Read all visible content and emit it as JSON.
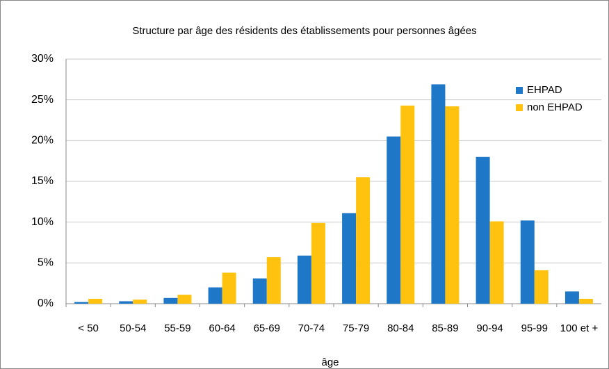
{
  "chart_data": {
    "type": "bar",
    "title": "Structure par âge des résidents des établissements pour personnes âgées",
    "xlabel": "âge",
    "categories": [
      "< 50",
      "50-54",
      "55-59",
      "60-64",
      "65-69",
      "70-74",
      "75-79",
      "80-84",
      "85-89",
      "90-94",
      "95-99",
      "100 et +"
    ],
    "series": [
      {
        "name": "EHPAD",
        "color": "#1f77c8",
        "values": [
          0.2,
          0.3,
          0.7,
          2.0,
          3.1,
          5.9,
          11.1,
          20.5,
          26.9,
          18.0,
          10.2,
          1.5
        ]
      },
      {
        "name": "non EHPAD",
        "color": "#ffc20e",
        "values": [
          0.6,
          0.5,
          1.1,
          3.8,
          5.7,
          9.9,
          15.5,
          24.3,
          24.2,
          10.1,
          4.1,
          0.6
        ]
      }
    ],
    "ylim": [
      0,
      30
    ],
    "yticks": [
      {
        "value": 0,
        "label": "0%"
      },
      {
        "value": 5,
        "label": "5%"
      },
      {
        "value": 10,
        "label": "10%"
      },
      {
        "value": 15,
        "label": "15%"
      },
      {
        "value": 20,
        "label": "20%"
      },
      {
        "value": 25,
        "label": "25%"
      },
      {
        "value": 30,
        "label": "30%"
      }
    ],
    "grid": true,
    "legend": "top-right"
  }
}
